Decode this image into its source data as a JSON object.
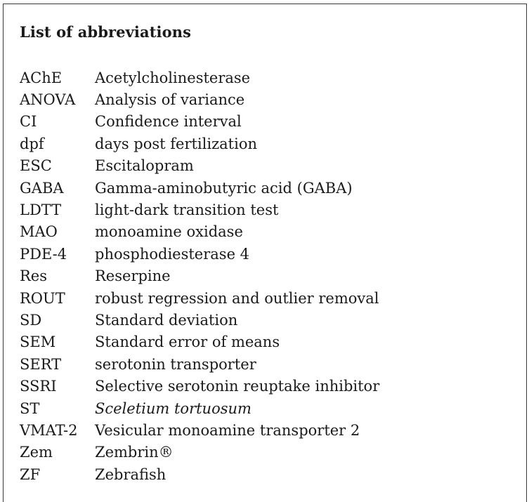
{
  "title": "List of abbreviations",
  "entries": [
    {
      "abbr": "AChE",
      "definition": "Acetylcholinesterase"
    },
    {
      "abbr": "ANOVA",
      "definition": "Analysis of variance"
    },
    {
      "abbr": "CI",
      "definition": "Confidence interval"
    },
    {
      "abbr": "dpf",
      "definition": "days post fertilization"
    },
    {
      "abbr": "ESC",
      "definition": "Escitalopram"
    },
    {
      "abbr": "GABA",
      "definition": "Gamma-aminobutyric acid (GABA)"
    },
    {
      "abbr": "LDTT",
      "definition": "light-dark transition test"
    },
    {
      "abbr": "MAO",
      "definition": "monoamine oxidase"
    },
    {
      "abbr": "PDE-4",
      "definition": "phosphodiesterase 4"
    },
    {
      "abbr": "Res",
      "definition": "Reserpine"
    },
    {
      "abbr": "ROUT",
      "definition": "robust regression and outlier removal"
    },
    {
      "abbr": "SD",
      "definition": "Standard deviation"
    },
    {
      "abbr": "SEM",
      "definition": "Standard error of means"
    },
    {
      "abbr": "SERT",
      "definition": "serotonin transporter"
    },
    {
      "abbr": "SSRI",
      "definition": "Selective serotonin reuptake inhibitor"
    },
    {
      "abbr": "ST",
      "definition": "Sceletium tortuosum",
      "italic": true
    },
    {
      "abbr": "VMAT-2",
      "definition": "Vesicular monoamine transporter 2"
    },
    {
      "abbr": "Zem",
      "definition": "Zembrin®"
    },
    {
      "abbr": "ZF",
      "definition": "Zebrafish"
    }
  ]
}
